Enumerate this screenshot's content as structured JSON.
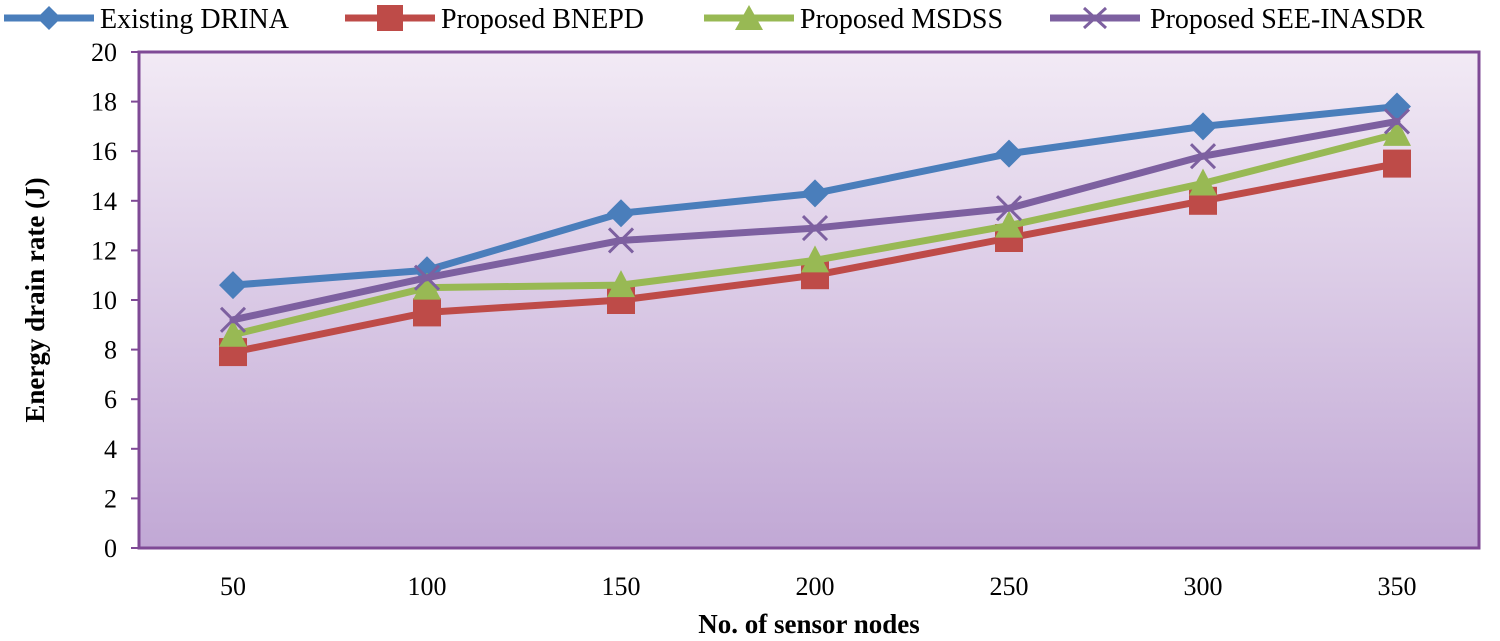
{
  "chart_data": {
    "type": "line",
    "title": "",
    "xlabel": "No. of sensor nodes",
    "ylabel": "Energy drain rate (J)",
    "categories": [
      "50",
      "100",
      "150",
      "200",
      "250",
      "300",
      "350"
    ],
    "ylim": [
      0,
      20
    ],
    "yticks": [
      0,
      2,
      4,
      6,
      8,
      10,
      12,
      14,
      16,
      18,
      20
    ],
    "grid": false,
    "legend_position": "top",
    "series": [
      {
        "name": "Existing DRINA",
        "marker": "diamond",
        "color": "#4A7EBB",
        "values": [
          10.6,
          11.2,
          13.5,
          14.3,
          15.9,
          17.0,
          17.8
        ]
      },
      {
        "name": "Proposed BNEPD",
        "marker": "square",
        "color": "#BE4B48",
        "values": [
          7.9,
          9.5,
          10.0,
          11.0,
          12.5,
          14.0,
          15.5
        ]
      },
      {
        "name": "Proposed MSDSS",
        "marker": "triangle",
        "color": "#98B954",
        "values": [
          8.6,
          10.5,
          10.6,
          11.6,
          13.0,
          14.7,
          16.7
        ]
      },
      {
        "name": "Proposed SEE-INASDR",
        "marker": "x",
        "color": "#7D60A0",
        "values": [
          9.2,
          10.9,
          12.4,
          12.9,
          13.7,
          15.8,
          17.2
        ]
      }
    ]
  }
}
